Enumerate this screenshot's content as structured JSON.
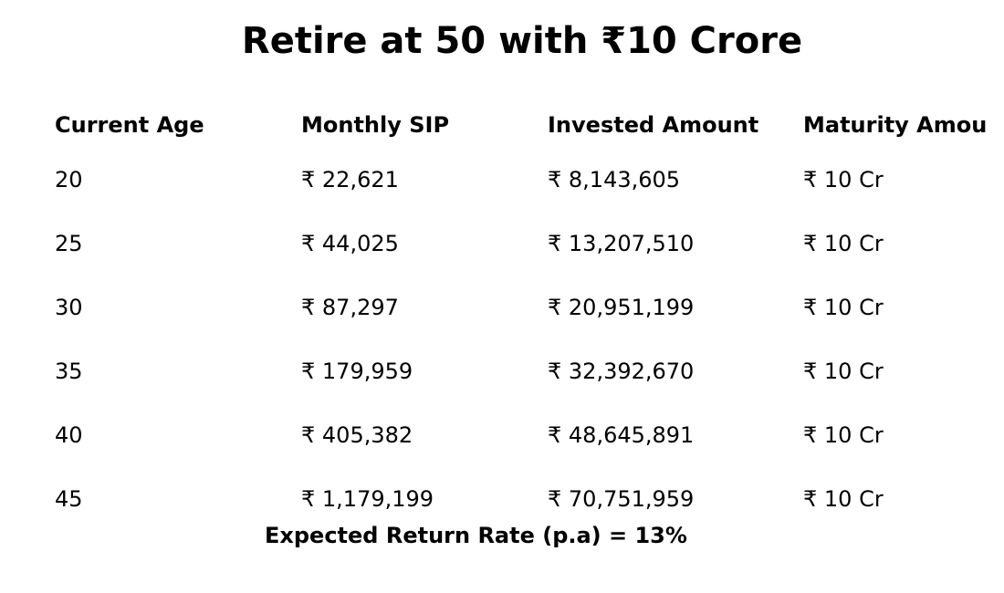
{
  "header": {
    "title": "Retire at 50 with ₹10 Crore"
  },
  "table": {
    "columns": [
      "Current Age",
      "Monthly SIP",
      "Invested Amount",
      "Maturity Amou"
    ],
    "rows": [
      [
        "20",
        "₹ 22,621",
        "₹ 8,143,605",
        "₹ 10 Cr"
      ],
      [
        "25",
        "₹ 44,025",
        "₹ 13,207,510",
        "₹ 10 Cr"
      ],
      [
        "30",
        "₹ 87,297",
        "₹ 20,951,199",
        "₹ 10 Cr"
      ],
      [
        "35",
        "₹ 179,959",
        "₹ 32,392,670",
        "₹ 10 Cr"
      ],
      [
        "40",
        "₹ 405,382",
        "₹ 48,645,891",
        "₹ 10 Cr"
      ],
      [
        "45",
        "₹ 1,179,199",
        "₹ 70,751,959",
        "₹ 10 Cr"
      ]
    ]
  },
  "footer": {
    "note": "Expected Return Rate (p.a) = 13%"
  }
}
